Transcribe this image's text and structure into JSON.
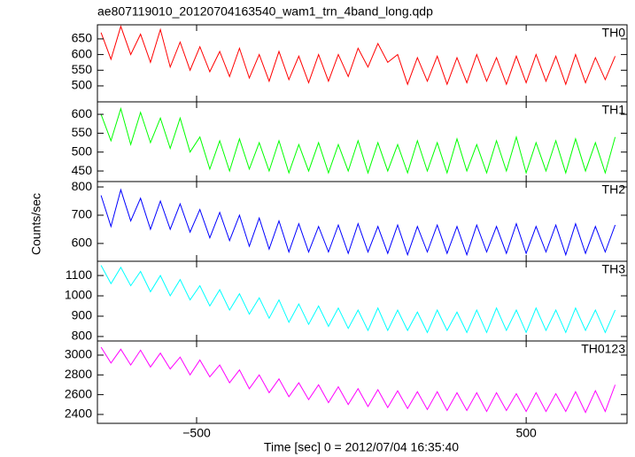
{
  "chart_data": {
    "type": "line",
    "title": "ae807119010_20120704163540_wam1_trn_4band_long.qdp",
    "xlabel": "Time [sec] 0 = 2012/07/04 16:35:40",
    "ylabel": "Counts/sec",
    "xlim": [
      -801,
      806
    ],
    "xticks": [
      {
        "value": -500,
        "label": "−500"
      },
      500
    ],
    "x": [
      -790,
      -760,
      -730,
      -700,
      -670,
      -640,
      -610,
      -580,
      -550,
      -520,
      -490,
      -460,
      -430,
      -400,
      -370,
      -340,
      -310,
      -280,
      -250,
      -220,
      -190,
      -160,
      -130,
      -100,
      -70,
      -40,
      -10,
      20,
      50,
      80,
      110,
      140,
      170,
      200,
      230,
      260,
      290,
      320,
      350,
      380,
      410,
      440,
      470,
      500,
      530,
      560,
      590,
      620,
      650,
      680,
      710,
      740,
      770
    ],
    "series": [
      {
        "name": "TH0",
        "color": "#ff0000",
        "ylim": [
          449,
          695
        ],
        "yticks": [
          500,
          550,
          600,
          650
        ],
        "values": [
          670,
          585,
          690,
          600,
          665,
          575,
          680,
          560,
          640,
          550,
          625,
          545,
          610,
          530,
          620,
          525,
          600,
          515,
          610,
          520,
          595,
          510,
          600,
          515,
          600,
          530,
          620,
          560,
          635,
          575,
          600,
          505,
          590,
          515,
          595,
          505,
          590,
          510,
          600,
          515,
          590,
          505,
          595,
          510,
          600,
          515,
          595,
          505,
          600,
          510,
          590,
          520,
          595
        ]
      },
      {
        "name": "TH1",
        "color": "#00ff00",
        "ylim": [
          422,
          633
        ],
        "yticks": [
          450,
          500,
          550,
          600
        ],
        "values": [
          600,
          530,
          615,
          520,
          605,
          525,
          590,
          510,
          590,
          500,
          540,
          455,
          530,
          450,
          535,
          455,
          525,
          450,
          530,
          445,
          520,
          450,
          525,
          445,
          520,
          450,
          530,
          445,
          525,
          450,
          520,
          445,
          530,
          450,
          525,
          445,
          535,
          450,
          520,
          445,
          530,
          450,
          540,
          445,
          525,
          450,
          530,
          445,
          535,
          450,
          525,
          445,
          540
        ]
      },
      {
        "name": "TH2",
        "color": "#0000ff",
        "ylim": [
          537,
          819
        ],
        "yticks": [
          600,
          700,
          800
        ],
        "values": [
          770,
          660,
          790,
          680,
          760,
          650,
          750,
          650,
          740,
          640,
          720,
          620,
          710,
          610,
          700,
          590,
          690,
          580,
          680,
          570,
          670,
          570,
          660,
          570,
          665,
          565,
          670,
          570,
          660,
          565,
          665,
          560,
          660,
          570,
          665,
          565,
          660,
          560,
          665,
          570,
          660,
          565,
          670,
          565,
          660,
          570,
          665,
          560,
          670,
          565,
          660,
          570,
          665
        ]
      },
      {
        "name": "TH3",
        "color": "#00ffff",
        "ylim": [
          778,
          1170
        ],
        "yticks": [
          800,
          900,
          1000,
          1100
        ],
        "values": [
          1150,
          1060,
          1140,
          1050,
          1120,
          1020,
          1100,
          1000,
          1080,
          980,
          1050,
          950,
          1030,
          930,
          1010,
          910,
          990,
          890,
          980,
          870,
          960,
          860,
          950,
          850,
          940,
          840,
          930,
          830,
          940,
          830,
          930,
          830,
          920,
          820,
          930,
          830,
          920,
          820,
          930,
          820,
          940,
          830,
          930,
          820,
          940,
          830,
          930,
          820,
          940,
          830,
          930,
          820,
          930
        ]
      },
      {
        "name": "TH0123",
        "color": "#ff00ff",
        "ylim": [
          2310,
          3143
        ],
        "yticks": [
          2400,
          2600,
          2800,
          3000
        ],
        "values": [
          3080,
          2920,
          3060,
          2900,
          3050,
          2880,
          3020,
          2860,
          2980,
          2800,
          2950,
          2780,
          2900,
          2720,
          2850,
          2660,
          2800,
          2620,
          2760,
          2580,
          2720,
          2550,
          2700,
          2520,
          2680,
          2500,
          2660,
          2480,
          2650,
          2470,
          2640,
          2460,
          2630,
          2450,
          2630,
          2440,
          2620,
          2440,
          2620,
          2430,
          2620,
          2440,
          2610,
          2430,
          2620,
          2430,
          2610,
          2430,
          2630,
          2420,
          2640,
          2430,
          2700
        ]
      }
    ]
  }
}
